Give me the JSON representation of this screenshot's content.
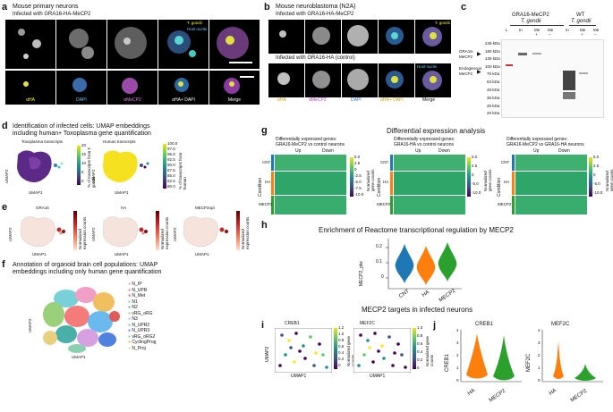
{
  "panels": {
    "a": "a",
    "b": "b",
    "c": "c",
    "d": "d",
    "e": "e",
    "f": "f",
    "g": "g",
    "h": "h",
    "i": "i",
    "j": "j"
  },
  "a": {
    "title": "Mouse primary neurons",
    "subtitle": "Infected with GRA16-HA-MeCP2",
    "labels": [
      "αHA",
      "DAPI",
      "αMeCP2",
      "αHA+ DAPI",
      "Merge"
    ],
    "inset1": "T. gondii",
    "inset2": "Host nuclei"
  },
  "b": {
    "title": "Mouse neuroblastoma (N2A)",
    "subtitle": "Infected with GRA16-HA-MeCP2",
    "subtitle2": "Infected with GRA16-HA (control)",
    "labels": [
      "αHA",
      "αMeCP2",
      "DAPI",
      "αHA+ DAPI",
      "Merge"
    ],
    "inset1": "T. gondii",
    "inset2": "Host nuclei"
  },
  "c": {
    "col1": "GRA16-MeCP2",
    "col1b": "T. gondii",
    "col2": "WT",
    "col2b": "T. gondii",
    "lanes": [
      "L",
      "In",
      "Me",
      "Me",
      "In",
      "Me",
      "Me"
    ],
    "lane_sub": [
      "",
      "",
      "+",
      "–",
      "",
      "+",
      "–"
    ],
    "left_labels": [
      "GRA16-",
      "MeCP2",
      "Endogenous",
      "MeCP2"
    ],
    "kda": [
      "245 kDa",
      "180 kDa",
      "135 kDa",
      "100 kDa",
      "75 kDa",
      "63 kDa",
      "48 kDa",
      "35 kDa",
      "25 kDa",
      "20 kDa"
    ]
  },
  "d": {
    "title": "Identification of infected cells: UMAP embeddings",
    "title2": "including human+ Toxoplasma gene quantification",
    "sub1": "Toxoplasma transcripts",
    "sub2": "Human transcripts",
    "xlabel": "UMAP1",
    "ylabel": "UMAP2",
    "cbar1": "% of transcripts from T. gondii",
    "cbar2": "% of transcripts from human",
    "cbar1_ticks": [
      "20",
      "15",
      "10",
      "5",
      "0"
    ],
    "cbar2_ticks": [
      "100.0",
      "97.5",
      "95.0",
      "92.5",
      "90.0",
      "87.5",
      "85.0",
      "82.5",
      "80.0"
    ]
  },
  "e": {
    "subs": [
      "GRA16",
      "HA",
      "MECP2opt"
    ],
    "xlabel": "UMAP1",
    "ylabel": "UMAP2",
    "cbar": "Normalized expression counts",
    "ticks": [
      "1.0",
      "0.8",
      "0.6",
      "0.4",
      "0.2",
      "0"
    ]
  },
  "f": {
    "title": "Annotation of organoid brain cell populations: UMAP",
    "title2": "embeddings including only human gene quantification",
    "xlabel": "UMAP1",
    "ylabel": "UMAP2",
    "legend": [
      "N_IP",
      "N_UPR",
      "N_Met",
      "N1",
      "N2",
      "vRG_oRG",
      "N3",
      "N_UPR2",
      "N_UPR3",
      "vRG_oRG2",
      "CyclingProg",
      "N_Proj"
    ],
    "colors": [
      "#f0a0c8",
      "#f57a7a",
      "#e05a5a",
      "#7ad0d8",
      "#48b0a8",
      "#9ad07a",
      "#d7a0e0",
      "#6abaf0",
      "#5080e0",
      "#8ad0b0",
      "#f0c060",
      "#e8d080"
    ],
    "cluster_ids": [
      "0",
      "1",
      "2",
      "3",
      "4",
      "5",
      "6",
      "7",
      "8",
      "9",
      "10",
      "11"
    ]
  },
  "g": {
    "title": "Differential expression analysis",
    "sub": [
      "Differentially expressed genes:",
      "Differentially expressed genes:",
      "Differentially expressed genes:"
    ],
    "sub2": [
      "GRA16-MeCP2 vs control neurons",
      "GRA16-HA vs control neurons",
      "GRA16-MeCP2 vs GRA16-HA neurons"
    ],
    "cols": [
      "Up",
      "Down"
    ],
    "rows": [
      "CNT",
      "HA",
      "MECP2"
    ],
    "ylabel": "Condition",
    "cbar": "Normalized gene counts",
    "ticks": [
      "5.0",
      "2.5",
      "0",
      "-2.5",
      "-5.0",
      "-7.5",
      "-10.0"
    ]
  },
  "h": {
    "title": "Enrichment of Reactome transcriptional regulation by MECP2",
    "ylabel": "MECP2_ptw",
    "yticks": [
      "0.2",
      "0.1",
      "0"
    ],
    "categories": [
      "CNT",
      "HA",
      "MECP2"
    ],
    "colors": [
      "#1f77b4",
      "#ff7f0e",
      "#2ca02c"
    ]
  },
  "i": {
    "title": "MECP2 targets in infected neurons",
    "subs": [
      "CREB1",
      "MEF2C"
    ],
    "xlabel": "UMAP1",
    "ylabel": "UMAP2",
    "cbar": "Normalized gene counts",
    "ticks1": [
      "1.2",
      "1.0",
      "0.8",
      "0.6",
      "0.4",
      "0.2",
      "0"
    ],
    "ticks2": [
      "1.0",
      "0.8",
      "0.6",
      "0.4",
      "0.2",
      "0"
    ]
  },
  "j": {
    "subs": [
      "CREB1",
      "MEF2C"
    ],
    "ylabels": [
      "CREB1",
      "MEF2C"
    ],
    "categories": [
      "HA",
      "MECP2"
    ],
    "yticks1": [
      "4",
      "3",
      "2",
      "1",
      "0"
    ],
    "yticks2": [
      "4",
      "3",
      "2",
      "1",
      "0"
    ],
    "colors": [
      "#ff7f0e",
      "#2ca02c"
    ]
  }
}
